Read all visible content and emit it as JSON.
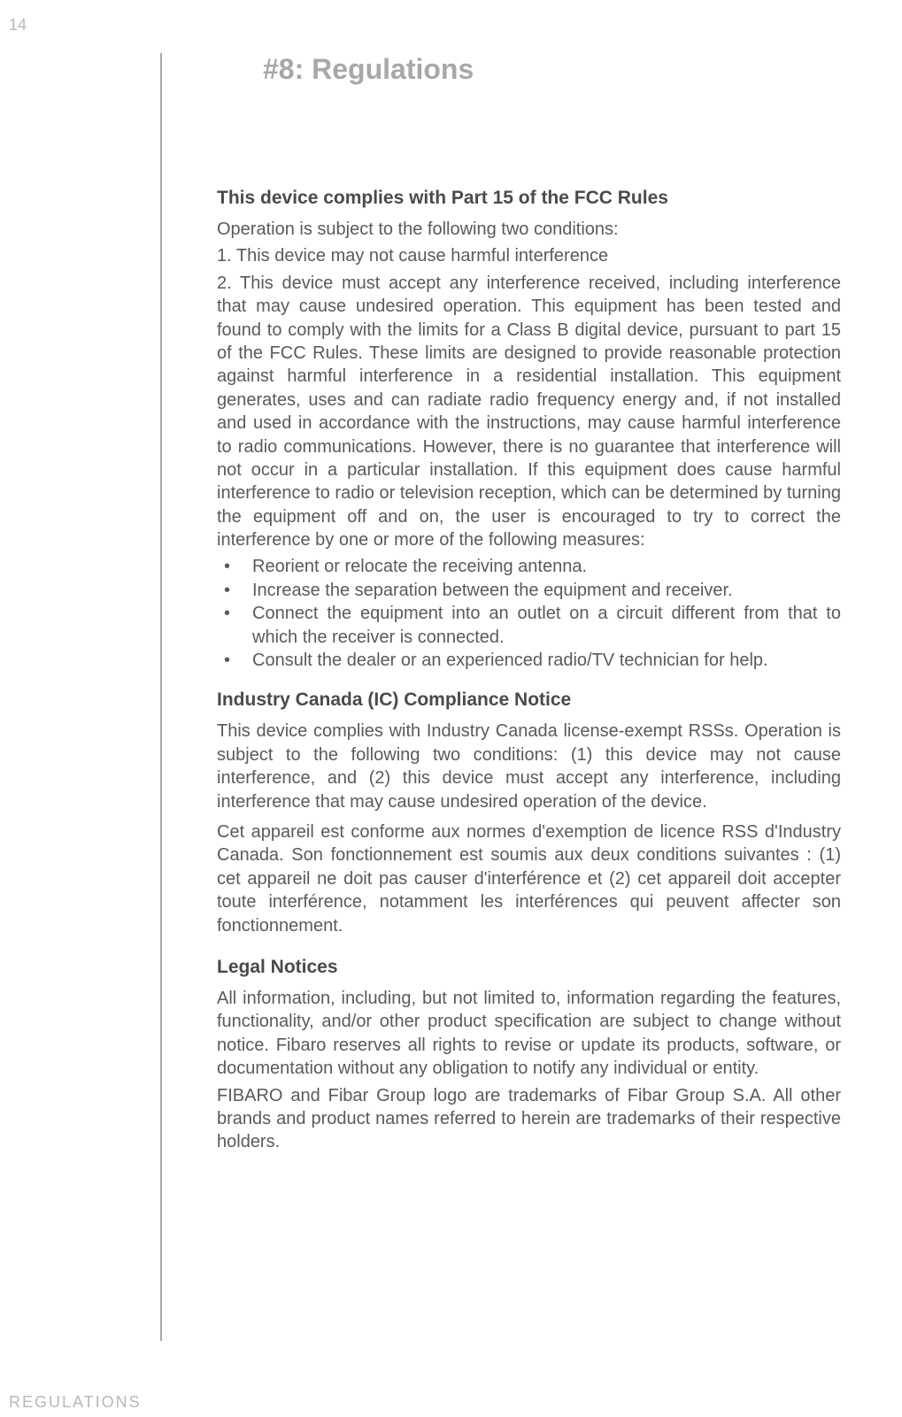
{
  "page": {
    "number": "14",
    "footerLabel": "REGULATIONS"
  },
  "heading": "#8: Regulations",
  "sections": {
    "fcc": {
      "title": "This device complies with Part 15 of the FCC Rules",
      "intro": "Operation is subject to the following two conditions:",
      "cond1": "1. This device may not cause harmful interference",
      "cond2": "2. This device must accept any interference received, including interference that may cause undesired operation. This equipment has been tested and found to comply with the limits for a Class B digital device, pursuant to part 15 of the FCC Rules. These limits are designed to provide reasonable protection against harmful interference in a residential installation. This equipment generates, uses and can radiate radio frequency energy and, if not installed and used in accordance with the instructions, may cause harmful interference to radio communications. However, there is no guarantee that interference will not occur in a particular installation. If this equipment does cause harmful interference to radio or television reception, which can be determined by turning the equipment off and on, the user is encouraged to try to correct the interference by one or more of the following measures:",
      "bullets": [
        "Reorient or relocate the receiving antenna.",
        "Increase the separation between the equipment and receiver.",
        "Connect the equipment into an outlet on a circuit different from that to which the receiver is connected.",
        "Consult the dealer or an experienced radio/TV technician for help."
      ]
    },
    "ic": {
      "title": "Industry Canada (IC) Compliance Notice",
      "para1": "This device complies with Industry Canada license-exempt RSSs. Operation is subject to the following two conditions: (1) this device may not cause interference, and (2) this device must accept any interference, including interference that may cause undesired operation of the device.",
      "para2": "Cet appareil est conforme aux normes d'exemption de licence RSS d'Industry Canada. Son fonctionnement est soumis aux deux conditions suivantes : (1) cet appareil ne doit pas causer d'interférence et (2) cet appareil doit accepter toute interférence, notamment les interférences qui peuvent affecter son fonctionnement."
    },
    "legal": {
      "title": "Legal Notices",
      "para1": "All information, including, but not limited to, information regarding the features, functionality, and/or other product specification are subject to change without notice. Fibaro reserves all rights to revise or update its products, software, or documentation without any obligation to notify any individual or entity.",
      "para2": "FIBARO and Fibar Group logo are trademarks of Fibar Group S.A. All other brands and product names referred to herein are trademarks of their respective holders."
    }
  }
}
